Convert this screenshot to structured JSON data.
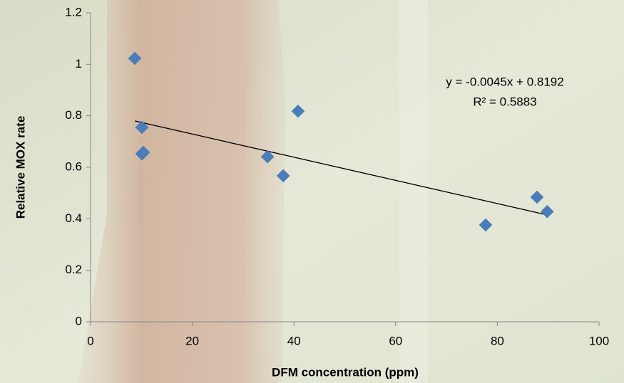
{
  "chart_data": {
    "type": "scatter",
    "x_label": "DFM concentration (ppm)",
    "y_label": "Relative MOX rate",
    "series": [
      {
        "color": "#4a7ebb",
        "x": [
          8.7,
          10.1,
          10.1,
          10.4,
          34.8,
          37.9,
          40.8,
          77.7,
          87.8,
          89.8
        ],
        "values": [
          1.023,
          0.755,
          0.652,
          0.658,
          0.641,
          0.567,
          0.818,
          0.376,
          0.484,
          0.428
        ]
      }
    ],
    "trendline": {
      "equation": "y = -0.0045x + 0.8192",
      "r_squared": "R² = 0.5883",
      "color": "#000000",
      "x": [
        8.7,
        89.8
      ],
      "values": [
        0.7801,
        0.4151
      ]
    },
    "xlim": [
      0,
      100
    ],
    "xticks": [
      0,
      20,
      40,
      60,
      80,
      100
    ],
    "ylim": [
      0,
      1.2
    ],
    "yticks": [
      0,
      0.2,
      0.4,
      0.6,
      0.8,
      1,
      1.2
    ],
    "grid": false
  }
}
